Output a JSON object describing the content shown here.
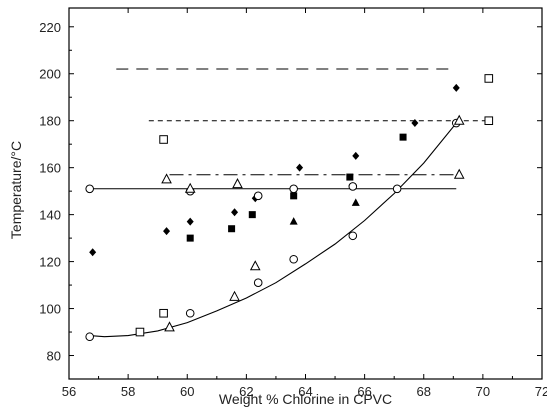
{
  "chart_data": {
    "type": "scatter",
    "xlabel": "Weight % Chlorine in CPVC",
    "ylabel": "Temperature/°C",
    "xlim": [
      56,
      72
    ],
    "ylim": [
      70,
      228
    ],
    "x_ticks": [
      56,
      58,
      60,
      62,
      64,
      66,
      68,
      70,
      72
    ],
    "y_ticks": [
      80,
      100,
      120,
      140,
      160,
      180,
      200,
      220
    ],
    "grid": false,
    "series": [
      {
        "marker": "filled-diamond",
        "points": [
          [
            56.8,
            124
          ],
          [
            59.3,
            133
          ],
          [
            60.1,
            137
          ],
          [
            61.6,
            141
          ],
          [
            62.3,
            147
          ],
          [
            63.8,
            160
          ],
          [
            65.7,
            165
          ],
          [
            67.7,
            179
          ],
          [
            69.1,
            194
          ]
        ]
      },
      {
        "marker": "filled-square",
        "points": [
          [
            60.1,
            130
          ],
          [
            61.5,
            134
          ],
          [
            62.2,
            140
          ],
          [
            63.6,
            148
          ],
          [
            65.5,
            156
          ],
          [
            67.3,
            173
          ]
        ]
      },
      {
        "marker": "filled-triangle",
        "points": [
          [
            63.6,
            137
          ],
          [
            65.7,
            145
          ]
        ]
      },
      {
        "marker": "open-circle",
        "points": [
          [
            56.7,
            88
          ],
          [
            56.7,
            151
          ],
          [
            60.1,
            98
          ],
          [
            60.1,
            150
          ],
          [
            62.4,
            111
          ],
          [
            62.4,
            148
          ],
          [
            63.6,
            121
          ],
          [
            63.6,
            151
          ],
          [
            65.6,
            131
          ],
          [
            65.6,
            152
          ],
          [
            67.1,
            151
          ],
          [
            69.1,
            179
          ]
        ]
      },
      {
        "marker": "open-square",
        "points": [
          [
            58.4,
            90
          ],
          [
            59.2,
            98
          ],
          [
            59.2,
            172
          ],
          [
            70.2,
            198
          ],
          [
            70.2,
            180
          ]
        ]
      },
      {
        "marker": "open-triangle",
        "points": [
          [
            59.4,
            92
          ],
          [
            59.3,
            155
          ],
          [
            60.1,
            151
          ],
          [
            61.6,
            105
          ],
          [
            61.7,
            153
          ],
          [
            62.3,
            118
          ],
          [
            69.2,
            157
          ],
          [
            69.2,
            180
          ]
        ]
      }
    ],
    "reference_lines": [
      {
        "style": "long-dash",
        "y": 202,
        "x": [
          57.6,
          69.1
        ]
      },
      {
        "style": "short-dash",
        "y": 180,
        "x": [
          58.7,
          70.1
        ]
      },
      {
        "style": "dash-dot",
        "y": 157,
        "x": [
          59.4,
          69.2
        ]
      },
      {
        "style": "solid",
        "y": 151,
        "x": [
          56.7,
          69.1
        ]
      }
    ],
    "fit_curve": {
      "style": "solid",
      "x": [
        56.7,
        57.2,
        58.0,
        59.0,
        60.0,
        61.0,
        62.0,
        63.0,
        64.0,
        65.0,
        66.0,
        67.0,
        68.0,
        69.1
      ],
      "y": [
        88.5,
        88.0,
        88.5,
        90.5,
        94.0,
        99.0,
        104.5,
        111.0,
        119.0,
        127.5,
        137.5,
        149.0,
        162.0,
        179.0
      ]
    }
  }
}
